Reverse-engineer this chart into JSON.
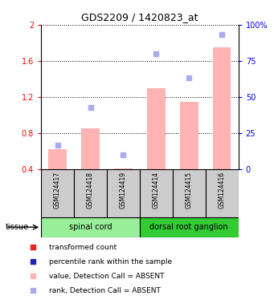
{
  "title": "GDS2209 / 1420823_at",
  "samples": [
    "GSM124417",
    "GSM124418",
    "GSM124419",
    "GSM124414",
    "GSM124415",
    "GSM124416"
  ],
  "bar_values": [
    0.62,
    0.85,
    0.41,
    1.3,
    1.15,
    1.75
  ],
  "rank_values": [
    17,
    43,
    10,
    80,
    63,
    93
  ],
  "bar_color_absent": "#FFB3B3",
  "dot_color_absent": "#AAAAEE",
  "bar_color_present": "#FF0000",
  "dot_color_present": "#0000BB",
  "ylim_left": [
    0.4,
    2.0
  ],
  "ylim_right": [
    0,
    100
  ],
  "yticks_left": [
    0.4,
    0.8,
    1.2,
    1.6,
    2.0
  ],
  "yticks_right": [
    0,
    25,
    50,
    75,
    100
  ],
  "ytick_labels_right": [
    "0",
    "25",
    "50",
    "75",
    "100%"
  ],
  "ytick_labels_left": [
    "0.4",
    "0.8",
    "1.2",
    "1.6",
    "2"
  ],
  "tissue_groups": [
    {
      "label": "spinal cord",
      "indices": [
        0,
        1,
        2
      ],
      "color": "#99EE99"
    },
    {
      "label": "dorsal root ganglion",
      "indices": [
        3,
        4,
        5
      ],
      "color": "#33CC33"
    }
  ],
  "tissue_label": "tissue",
  "legend_items": [
    {
      "label": "transformed count",
      "color": "#EE2222",
      "marker": "s"
    },
    {
      "label": "percentile rank within the sample",
      "color": "#2222BB",
      "marker": "s"
    },
    {
      "label": "value, Detection Call = ABSENT",
      "color": "#FFB3B3",
      "marker": "s"
    },
    {
      "label": "rank, Detection Call = ABSENT",
      "color": "#AAAAEE",
      "marker": "s"
    }
  ],
  "background_color": "#FFFFFF",
  "bar_bottom": 0.4,
  "bar_width": 0.55,
  "sample_box_color": "#CCCCCC",
  "spine_color": "#000000"
}
